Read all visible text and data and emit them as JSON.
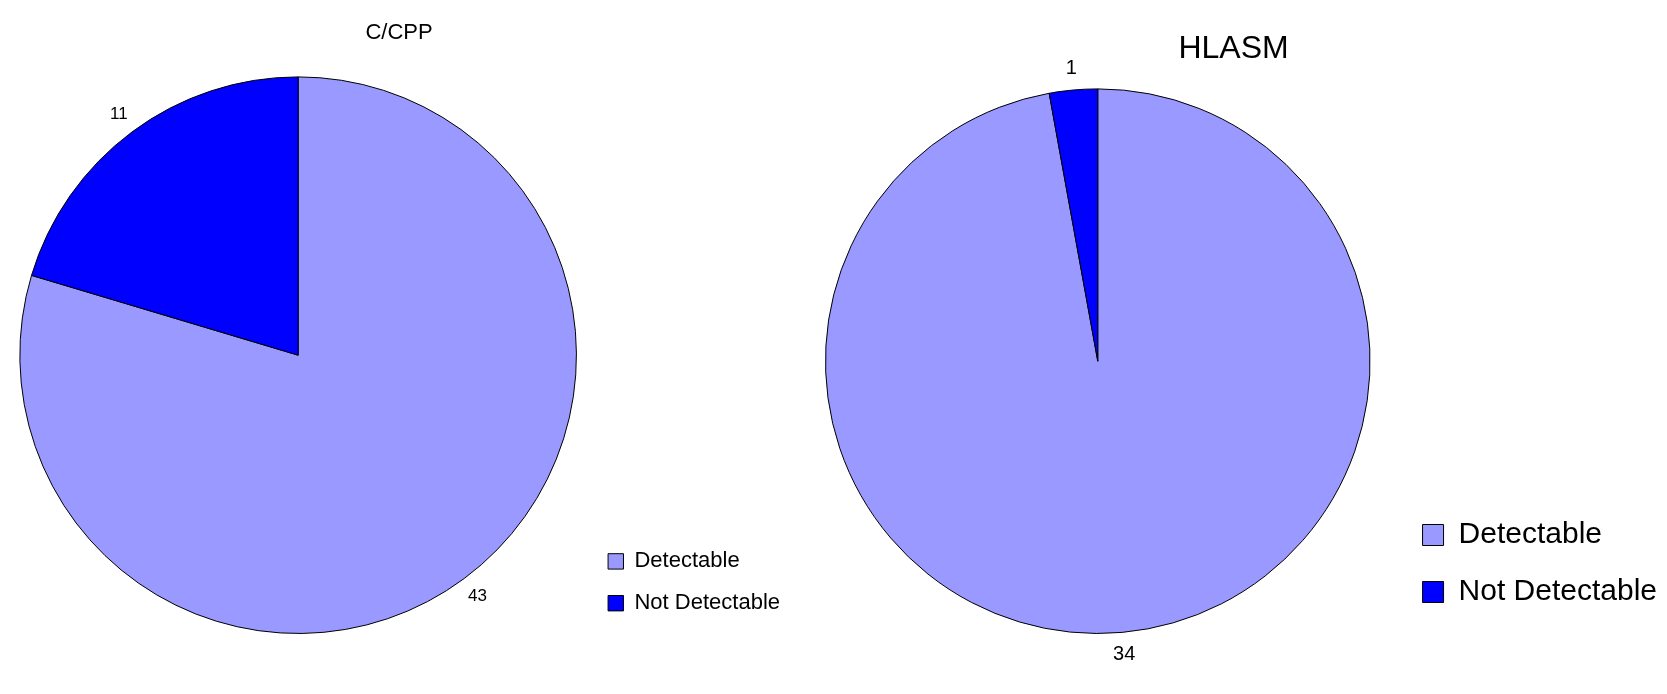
{
  "chart_data": [
    {
      "type": "pie",
      "title": "C/CPP",
      "categories": [
        "Detectable",
        "Not Detectable"
      ],
      "values": [
        43,
        11
      ],
      "colors": [
        "#9999ff",
        "#0000ff"
      ],
      "legend": "bottom right",
      "data_labels": true
    },
    {
      "type": "pie",
      "title": "HLASM",
      "categories": [
        "Detectable",
        "Not Detectable"
      ],
      "values": [
        34,
        1
      ],
      "colors": [
        "#9999ff",
        "#0000ff"
      ],
      "legend": "bottom right",
      "data_labels": true
    }
  ]
}
